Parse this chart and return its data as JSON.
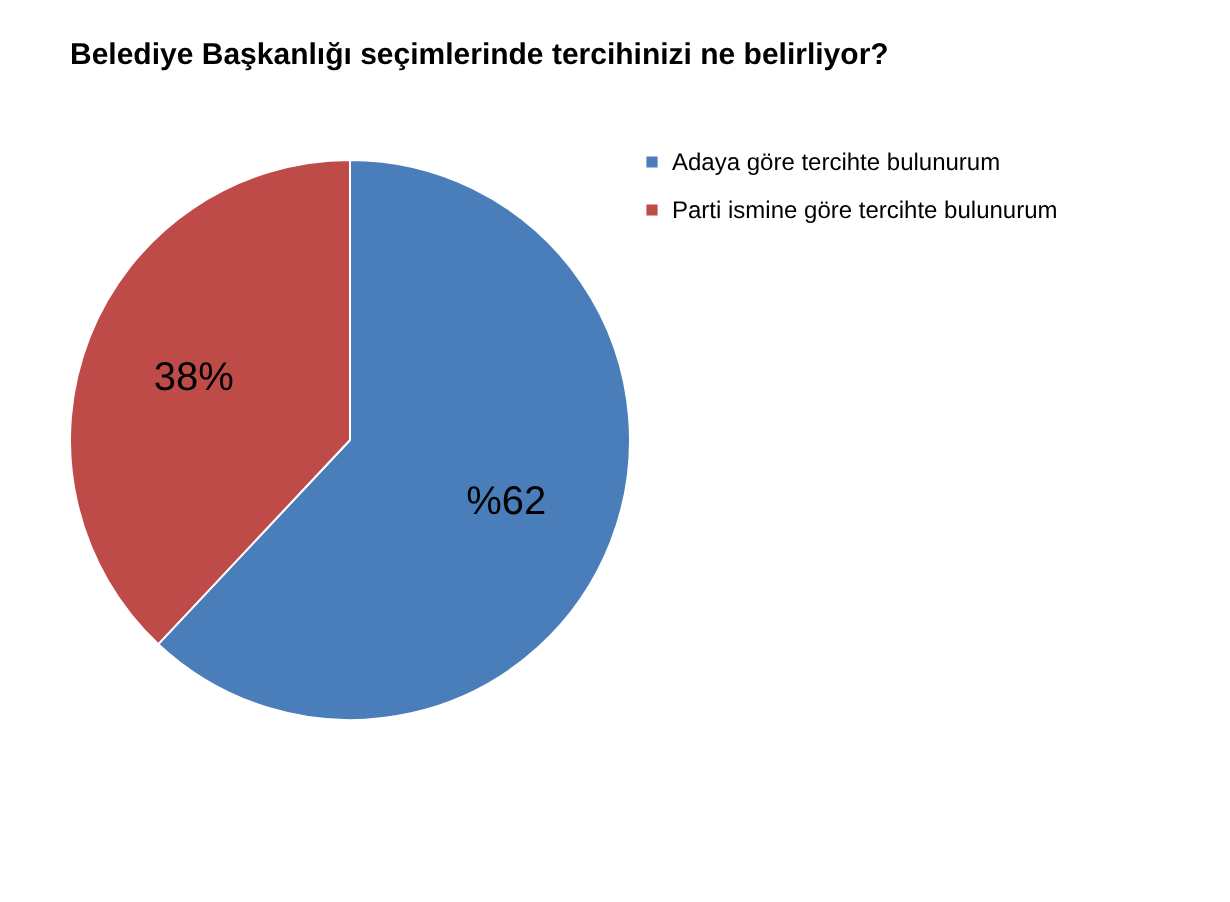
{
  "chart_data": {
    "type": "pie",
    "title": "Belediye Başkanlığı seçimlerinde tercihinizi ne belirliyor?",
    "categories": [
      "Adaya göre tercihte bulunurum",
      "Parti ismine göre tercihte bulunurum"
    ],
    "values": [
      62,
      38
    ],
    "colors": [
      "#4a7ebb",
      "#be4b48"
    ],
    "value_labels": [
      "%62",
      "38%"
    ],
    "legend": "right"
  }
}
